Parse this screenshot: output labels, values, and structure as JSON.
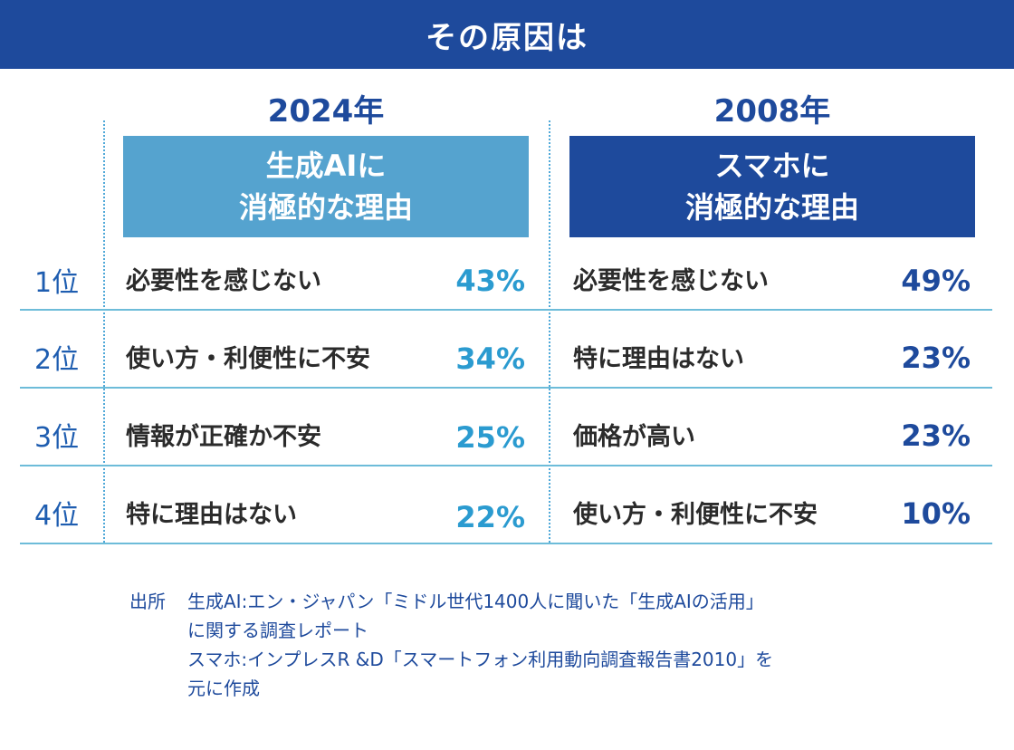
{
  "header": {
    "title": "その原因は"
  },
  "columns": [
    {
      "year": "2024年",
      "heading_line1": "生成AIに",
      "heading_line2": "消極的な理由"
    },
    {
      "year": "2008年",
      "heading_line1": "スマホに",
      "heading_line2": "消極的な理由"
    }
  ],
  "chart_data": {
    "type": "table",
    "ranks": [
      "1位",
      "2位",
      "3位",
      "4位"
    ],
    "series": [
      {
        "name": "2024年",
        "items": [
          {
            "reason": "必要性を感じない",
            "value": "43%"
          },
          {
            "reason": "使い方・利便性に不安",
            "value": "34%"
          },
          {
            "reason": "情報が正確か不安",
            "value": "25%"
          },
          {
            "reason": "特に理由はない",
            "value": "22%"
          }
        ]
      },
      {
        "name": "2008年",
        "items": [
          {
            "reason": "必要性を感じない",
            "value": "49%"
          },
          {
            "reason": "特に理由はない",
            "value": "23%"
          },
          {
            "reason": "価格が高い",
            "value": "23%"
          },
          {
            "reason": "使い方・利便性に不安",
            "value": "10%"
          }
        ]
      }
    ]
  },
  "source": {
    "label": "出所",
    "lines": [
      "生成AI:エン・ジャパン「ミドル世代1400人に聞いた「生成AIの活用」",
      "に関する調査レポート",
      "スマホ:インプレスR &D「スマートフォン利用動向調査報告書2010」を",
      "元に作成"
    ]
  },
  "colors": {
    "navy": "#1e4a9c",
    "light_blue": "#55a3cf",
    "pct_light": "#2b9bd0",
    "divider": "#6dbcd9"
  }
}
